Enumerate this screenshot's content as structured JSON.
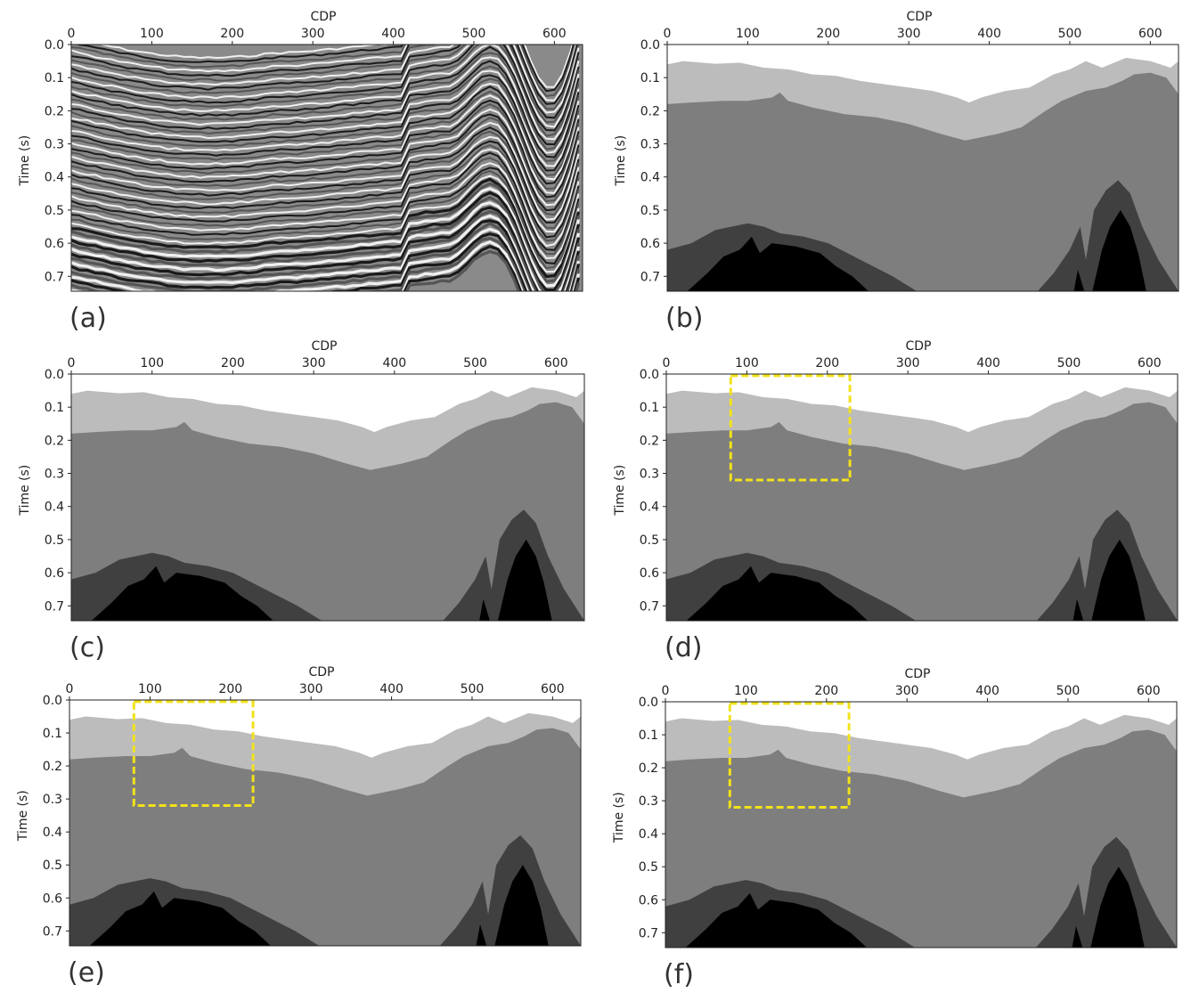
{
  "figure": {
    "xlabel": "CDP",
    "ylabel": "Time (s)",
    "x_ticks": [
      "0",
      "100",
      "200",
      "300",
      "400",
      "500",
      "600"
    ],
    "y_ticks": [
      "0.0",
      "0.1",
      "0.2",
      "0.3",
      "0.4",
      "0.5",
      "0.6",
      "0.7"
    ],
    "highlight_color": "#f2e21a",
    "layer_colors": [
      "#ffffff",
      "#bcbcbc",
      "#7e7e7e",
      "#404040",
      "#000000"
    ]
  },
  "panels": [
    {
      "id": "a",
      "label": "(a)",
      "kind": "seismic",
      "highlight": false
    },
    {
      "id": "b",
      "label": "(b)",
      "kind": "model",
      "highlight": false
    },
    {
      "id": "c",
      "label": "(c)",
      "kind": "model",
      "highlight": false
    },
    {
      "id": "d",
      "label": "(d)",
      "kind": "model",
      "highlight": true
    },
    {
      "id": "e",
      "label": "(e)",
      "kind": "model",
      "highlight": true
    },
    {
      "id": "f",
      "label": "(f)",
      "kind": "model",
      "highlight": true
    }
  ]
}
